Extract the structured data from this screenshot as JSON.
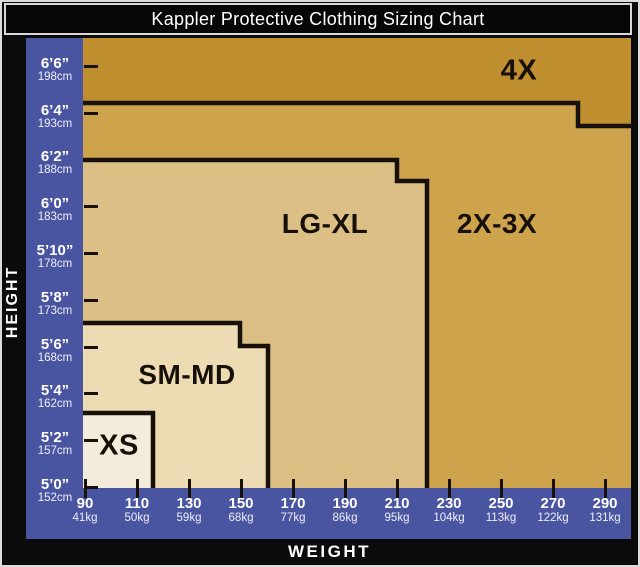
{
  "title": "Kappler Protective Clothing Sizing Chart",
  "axes": {
    "height": {
      "label": "HEIGHT",
      "ticks": [
        {
          "ft": "6’6”",
          "cm": "198cm"
        },
        {
          "ft": "6’4”",
          "cm": "193cm"
        },
        {
          "ft": "6’2”",
          "cm": "188cm"
        },
        {
          "ft": "6’0”",
          "cm": "183cm"
        },
        {
          "ft": "5’10”",
          "cm": "178cm"
        },
        {
          "ft": "5’8”",
          "cm": "173cm"
        },
        {
          "ft": "5’6”",
          "cm": "168cm"
        },
        {
          "ft": "5’4”",
          "cm": "162cm"
        },
        {
          "ft": "5’2”",
          "cm": "157cm"
        },
        {
          "ft": "5’0”",
          "cm": "152cm"
        }
      ]
    },
    "weight": {
      "label": "WEIGHT",
      "ticks": [
        {
          "lb": "90",
          "kg": "41kg"
        },
        {
          "lb": "110",
          "kg": "50kg"
        },
        {
          "lb": "130",
          "kg": "59kg"
        },
        {
          "lb": "150",
          "kg": "68kg"
        },
        {
          "lb": "170",
          "kg": "77kg"
        },
        {
          "lb": "190",
          "kg": "86kg"
        },
        {
          "lb": "210",
          "kg": "95kg"
        },
        {
          "lb": "230",
          "kg": "104kg"
        },
        {
          "lb": "250",
          "kg": "113kg"
        },
        {
          "lb": "270",
          "kg": "122kg"
        },
        {
          "lb": "290",
          "kg": "131kg"
        }
      ]
    }
  },
  "regions": {
    "xs": {
      "label": "XS"
    },
    "smmd": {
      "label": "SM-MD"
    },
    "lgxl": {
      "label": "LG-XL"
    },
    "x23": {
      "label": "2X-3X"
    },
    "x4": {
      "label": "4X"
    }
  },
  "colors": {
    "background": "#0b0b0b",
    "outer_frame": "#dcdcdc",
    "axis_band_blue": "#4a55a1",
    "boundary_line": "#17110a",
    "region_4x": "#bf8e2e",
    "region_2x3x": "#cda34c",
    "region_lgxl": "#dcbf85",
    "region_smmd": "#eddcb3",
    "region_xs": "#f4ecda",
    "title_text": "#ffffff",
    "axis_text": "#ffffff",
    "region_label_text": "#171008"
  },
  "chart_data": {
    "type": "area",
    "title": "Kappler Protective Clothing Sizing Chart",
    "xlabel": "WEIGHT",
    "ylabel": "HEIGHT",
    "x_axis": {
      "units": [
        "lb",
        "kg"
      ],
      "ticks_lb": [
        90,
        110,
        130,
        150,
        170,
        190,
        210,
        230,
        250,
        270,
        290
      ],
      "ticks_kg": [
        41,
        50,
        59,
        68,
        77,
        86,
        95,
        104,
        113,
        122,
        131
      ],
      "range_lb": [
        90,
        300
      ]
    },
    "y_axis": {
      "units": [
        "ft-in",
        "cm"
      ],
      "ticks_ftin": [
        "6'6\"",
        "6'4\"",
        "6'2\"",
        "6'0\"",
        "5'10\"",
        "5'8\"",
        "5'6\"",
        "5'4\"",
        "5'2\"",
        "5'0\""
      ],
      "ticks_cm": [
        198,
        193,
        188,
        183,
        178,
        173,
        168,
        162,
        157,
        152
      ],
      "range_ftin": [
        "5'0\"",
        "6'7\""
      ]
    },
    "grid": false,
    "legend": false,
    "regions": [
      {
        "label": "XS",
        "steps": [
          {
            "max_weight_lb": 115,
            "max_height": "5'3\""
          }
        ]
      },
      {
        "label": "SM-MD",
        "steps": [
          {
            "max_weight_lb": 150,
            "max_height": "5'7\""
          },
          {
            "max_weight_lb": 160,
            "max_height": "5'6\""
          }
        ]
      },
      {
        "label": "LG-XL",
        "steps": [
          {
            "max_weight_lb": 210,
            "max_height": "6'2\""
          },
          {
            "max_weight_lb": 220,
            "max_height": "6'1\""
          }
        ]
      },
      {
        "label": "2X-3X",
        "steps": [
          {
            "max_weight_lb": 275,
            "max_height": "6'4\""
          },
          {
            "max_weight_lb": 300,
            "max_height": "6'3\""
          }
        ]
      },
      {
        "label": "4X",
        "steps": [
          {
            "max_weight_lb": 300,
            "max_height": "6'7\"+"
          }
        ]
      }
    ],
    "note": "Nested stepped regions; each larger size region sits behind the smaller ones, lower-left origin at 90lb / 5'0\"."
  }
}
